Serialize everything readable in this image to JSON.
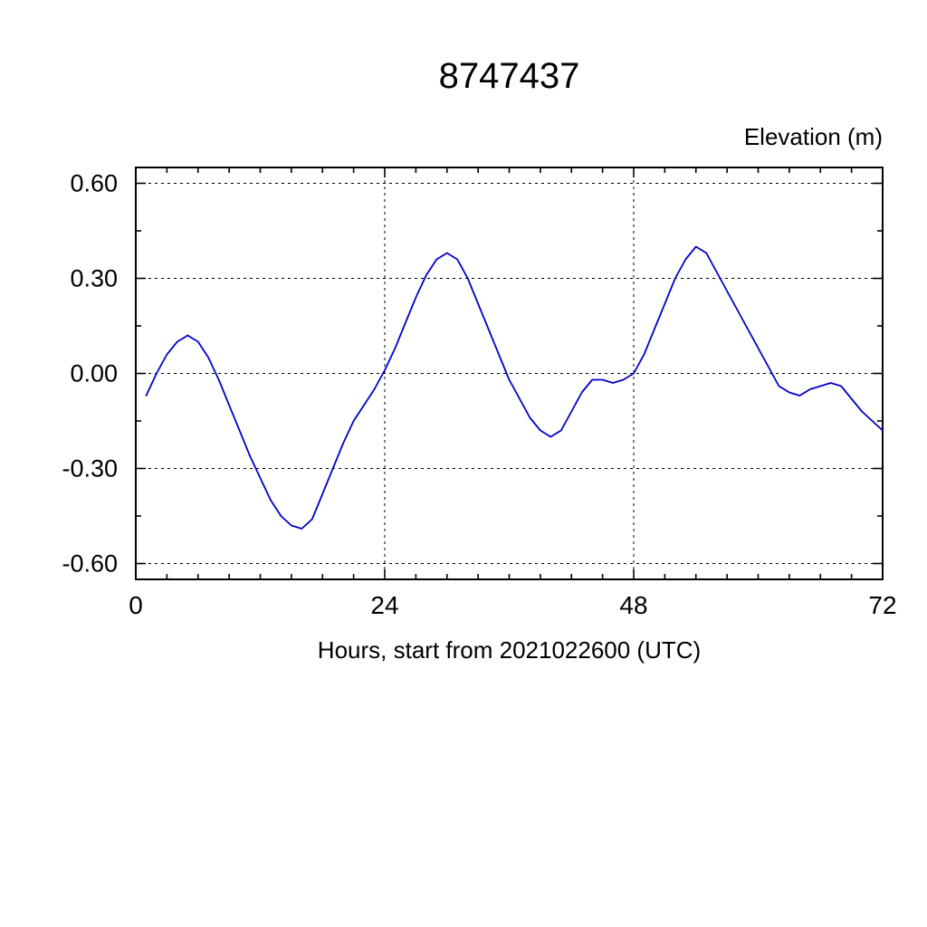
{
  "chart_data": {
    "type": "line",
    "title": "8747437",
    "ylabel": "Elevation (m)",
    "xlabel": "Hours, start from 2021022600 (UTC)",
    "xlim": [
      0,
      72
    ],
    "ylim": [
      -0.65,
      0.65
    ],
    "x_major_ticks": [
      0,
      24,
      48,
      72
    ],
    "x_minor_step": 3,
    "y_major_ticks": [
      -0.6,
      -0.3,
      0.0,
      0.3,
      0.6
    ],
    "y_minor_step": 0.15,
    "grid": true,
    "legend": "none",
    "line_color": "#0000cc",
    "x": [
      1,
      2,
      3,
      4,
      5,
      6,
      7,
      8,
      9,
      10,
      11,
      12,
      13,
      14,
      15,
      16,
      17,
      18,
      19,
      20,
      21,
      22,
      23,
      24,
      25,
      26,
      27,
      28,
      29,
      30,
      31,
      32,
      33,
      34,
      35,
      36,
      37,
      38,
      39,
      40,
      41,
      42,
      43,
      44,
      45,
      46,
      47,
      48,
      49,
      50,
      51,
      52,
      53,
      54,
      55,
      56,
      57,
      58,
      59,
      60,
      61,
      62,
      63,
      64,
      65,
      66,
      67,
      68,
      69,
      70,
      71,
      72
    ],
    "y": [
      -0.07,
      0.0,
      0.06,
      0.1,
      0.12,
      0.1,
      0.05,
      -0.02,
      -0.1,
      -0.18,
      -0.26,
      -0.33,
      -0.4,
      -0.45,
      -0.48,
      -0.49,
      -0.46,
      -0.38,
      -0.3,
      -0.22,
      -0.15,
      -0.1,
      -0.05,
      0.01,
      0.08,
      0.16,
      0.24,
      0.31,
      0.36,
      0.38,
      0.36,
      0.3,
      0.22,
      0.14,
      0.06,
      -0.02,
      -0.08,
      -0.14,
      -0.18,
      -0.2,
      -0.18,
      -0.12,
      -0.06,
      -0.02,
      -0.02,
      -0.03,
      -0.02,
      0.0,
      0.06,
      0.14,
      0.22,
      0.3,
      0.36,
      0.4,
      0.38,
      0.32,
      0.26,
      0.2,
      0.14,
      0.08,
      0.02,
      -0.04,
      -0.06,
      -0.07,
      -0.05,
      -0.04,
      -0.03,
      -0.04,
      -0.08,
      -0.12,
      -0.15,
      -0.18
    ]
  }
}
